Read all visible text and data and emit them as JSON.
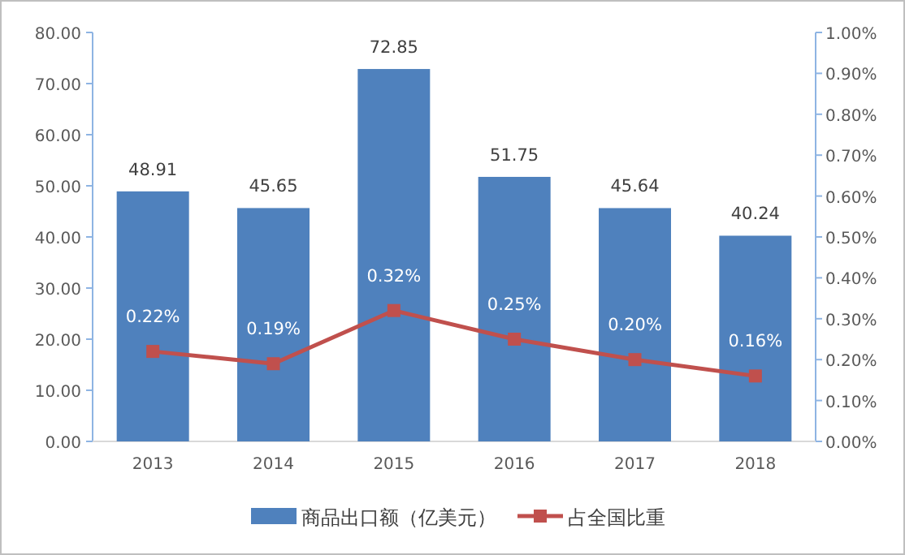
{
  "chart_data": {
    "type": "bar",
    "categories": [
      "2013",
      "2014",
      "2015",
      "2016",
      "2017",
      "2018"
    ],
    "series": [
      {
        "name": "商品出口额（亿美元）",
        "color": "#4f81bd",
        "values": [
          48.91,
          45.65,
          72.85,
          51.75,
          45.64,
          40.24
        ]
      },
      {
        "name": "占全国比重",
        "type": "line",
        "axis": "y2",
        "color": "#c0504d",
        "marker": "square",
        "values": [
          0.22,
          0.19,
          0.32,
          0.25,
          0.2,
          0.16
        ],
        "value_labels": [
          "0.22%",
          "0.19%",
          "0.32%",
          "0.25%",
          "0.20%",
          "0.16%"
        ]
      }
    ],
    "ylim": [
      0,
      80
    ],
    "yticks": [
      {
        "value": 0,
        "label": "0.00"
      },
      {
        "value": 10,
        "label": "10.00"
      },
      {
        "value": 20,
        "label": "20.00"
      },
      {
        "value": 30,
        "label": "30.00"
      },
      {
        "value": 40,
        "label": "40.00"
      },
      {
        "value": 50,
        "label": "50.00"
      },
      {
        "value": 60,
        "label": "60.00"
      },
      {
        "value": 70,
        "label": "70.00"
      },
      {
        "value": 80,
        "label": "80.00"
      }
    ],
    "y2lim": [
      0,
      1
    ],
    "y2ticks": [
      {
        "value": 0,
        "label": "0.00%"
      },
      {
        "value": 0.1,
        "label": "0.10%"
      },
      {
        "value": 0.2,
        "label": "0.20%"
      },
      {
        "value": 0.3,
        "label": "0.30%"
      },
      {
        "value": 0.4,
        "label": "0.40%"
      },
      {
        "value": 0.5,
        "label": "0.50%"
      },
      {
        "value": 0.6,
        "label": "0.60%"
      },
      {
        "value": 0.7,
        "label": "0.70%"
      },
      {
        "value": 0.8,
        "label": "0.80%"
      },
      {
        "value": 0.9,
        "label": "0.90%"
      },
      {
        "value": 1,
        "label": "1.00%"
      }
    ],
    "data_labels": true,
    "legend": "bottom",
    "grid": false
  }
}
